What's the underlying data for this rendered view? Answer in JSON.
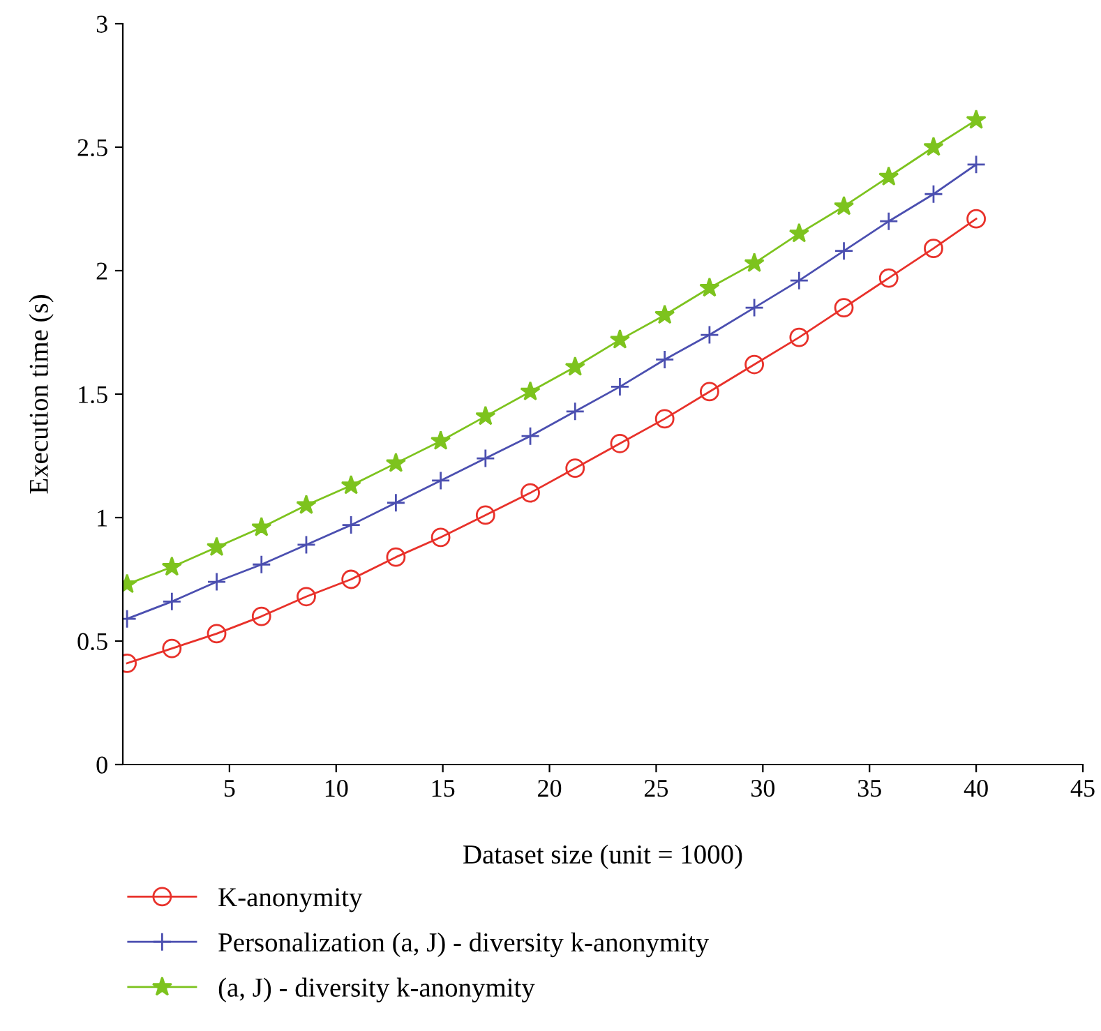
{
  "chart_data": {
    "type": "line",
    "xlabel": "Dataset size (unit = 1000)",
    "ylabel": "Execution time (s)",
    "x": [
      0.2,
      2.3,
      4.4,
      6.5,
      8.6,
      10.7,
      12.8,
      14.9,
      17.0,
      19.1,
      21.2,
      23.3,
      25.4,
      27.5,
      29.6,
      31.7,
      33.8,
      35.9,
      38.0,
      40.0
    ],
    "series": [
      {
        "name": "K-anonymity",
        "color": "#e8312a",
        "marker": "circle",
        "values": [
          0.41,
          0.47,
          0.53,
          0.6,
          0.68,
          0.75,
          0.84,
          0.92,
          1.01,
          1.1,
          1.2,
          1.3,
          1.4,
          1.51,
          1.62,
          1.73,
          1.85,
          1.97,
          2.09,
          2.21
        ]
      },
      {
        "name": "Personalization (a, J) - diversity k-anonymity",
        "color": "#4b4fb0",
        "marker": "cross",
        "values": [
          0.59,
          0.66,
          0.74,
          0.81,
          0.89,
          0.97,
          1.06,
          1.15,
          1.24,
          1.33,
          1.43,
          1.53,
          1.64,
          1.74,
          1.85,
          1.96,
          2.08,
          2.2,
          2.31,
          2.43
        ]
      },
      {
        "name": "(a, J) - diversity k-anonymity",
        "color": "#7dc31e",
        "marker": "star",
        "values": [
          0.73,
          0.8,
          0.88,
          0.96,
          1.05,
          1.13,
          1.22,
          1.31,
          1.41,
          1.51,
          1.61,
          1.72,
          1.82,
          1.93,
          2.03,
          2.15,
          2.26,
          2.38,
          2.5,
          2.61
        ]
      }
    ],
    "xlim": [
      0,
      45
    ],
    "xticks": [
      5,
      10,
      15,
      20,
      25,
      30,
      35,
      40,
      45
    ],
    "ylim": [
      0,
      3
    ],
    "yticks": [
      0,
      0.5,
      1,
      1.5,
      2,
      2.5,
      3
    ],
    "grid": false,
    "legend": "bottom",
    "line_style": "solid"
  }
}
